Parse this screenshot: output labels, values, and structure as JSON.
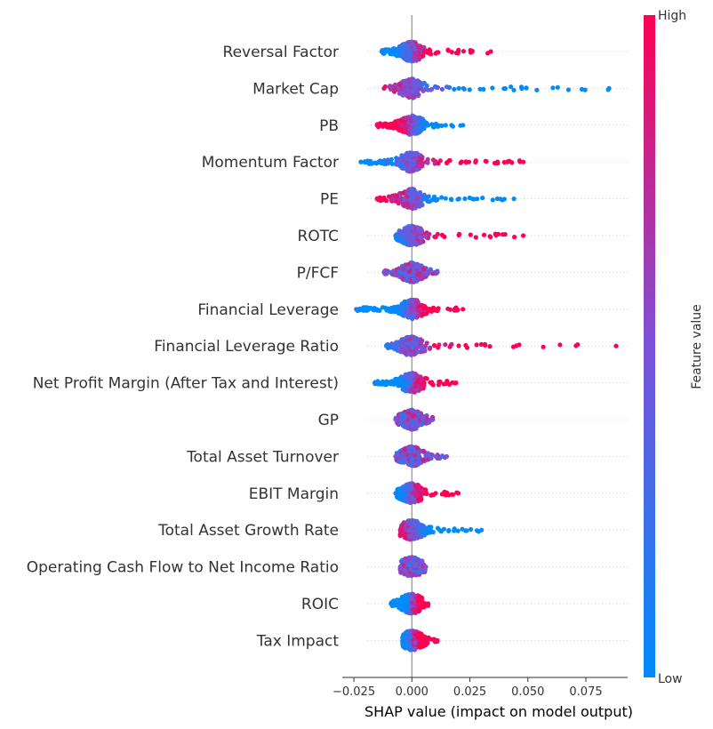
{
  "chart_data": {
    "type": "scatter",
    "subtype": "shap-beeswarm",
    "xlabel": "SHAP value (impact on model output)",
    "xlim": [
      -0.03,
      0.093
    ],
    "xticks": [
      -0.025,
      0.0,
      0.025,
      0.05,
      0.075
    ],
    "xtick_labels": [
      "−0.025",
      "0.000",
      "0.025",
      "0.050",
      "0.075"
    ],
    "colorbar": {
      "label": "Feature value",
      "high_label": "High",
      "low_label": "Low",
      "high_color": "#ff0052",
      "low_color": "#008bfa"
    },
    "features": [
      {
        "name": "Reversal Factor",
        "min": -0.013,
        "max": 0.034,
        "high_side": "positive"
      },
      {
        "name": "Market Cap",
        "min": -0.012,
        "max": 0.085,
        "high_side": "negative"
      },
      {
        "name": "PB",
        "min": -0.015,
        "max": 0.022,
        "high_side": "negative"
      },
      {
        "name": "Momentum Factor",
        "min": -0.022,
        "max": 0.048,
        "high_side": "positive"
      },
      {
        "name": "PE",
        "min": -0.015,
        "max": 0.044,
        "high_side": "negative"
      },
      {
        "name": "ROTC",
        "min": -0.007,
        "max": 0.048,
        "high_side": "positive"
      },
      {
        "name": "P/FCF",
        "min": -0.012,
        "max": 0.011,
        "high_side": "mixed"
      },
      {
        "name": "Financial Leverage",
        "min": -0.024,
        "max": 0.022,
        "high_side": "positive"
      },
      {
        "name": "Financial Leverage Ratio",
        "min": -0.011,
        "max": 0.088,
        "high_side": "positive"
      },
      {
        "name": "Net Profit Margin (After Tax and Interest)",
        "min": -0.016,
        "max": 0.019,
        "high_side": "positive"
      },
      {
        "name": "GP",
        "min": -0.007,
        "max": 0.009,
        "high_side": "mixed"
      },
      {
        "name": "Total Asset Turnover",
        "min": -0.007,
        "max": 0.015,
        "high_side": "mixed"
      },
      {
        "name": "EBIT Margin",
        "min": -0.007,
        "max": 0.02,
        "high_side": "positive"
      },
      {
        "name": "Total Asset Growth Rate",
        "min": -0.005,
        "max": 0.03,
        "high_side": "negative"
      },
      {
        "name": "Operating Cash Flow to Net Income Ratio",
        "min": -0.005,
        "max": 0.006,
        "high_side": "mixed"
      },
      {
        "name": "ROIC",
        "min": -0.009,
        "max": 0.007,
        "high_side": "positive"
      },
      {
        "name": "Tax Impact",
        "min": -0.004,
        "max": 0.011,
        "high_side": "positive"
      }
    ]
  }
}
